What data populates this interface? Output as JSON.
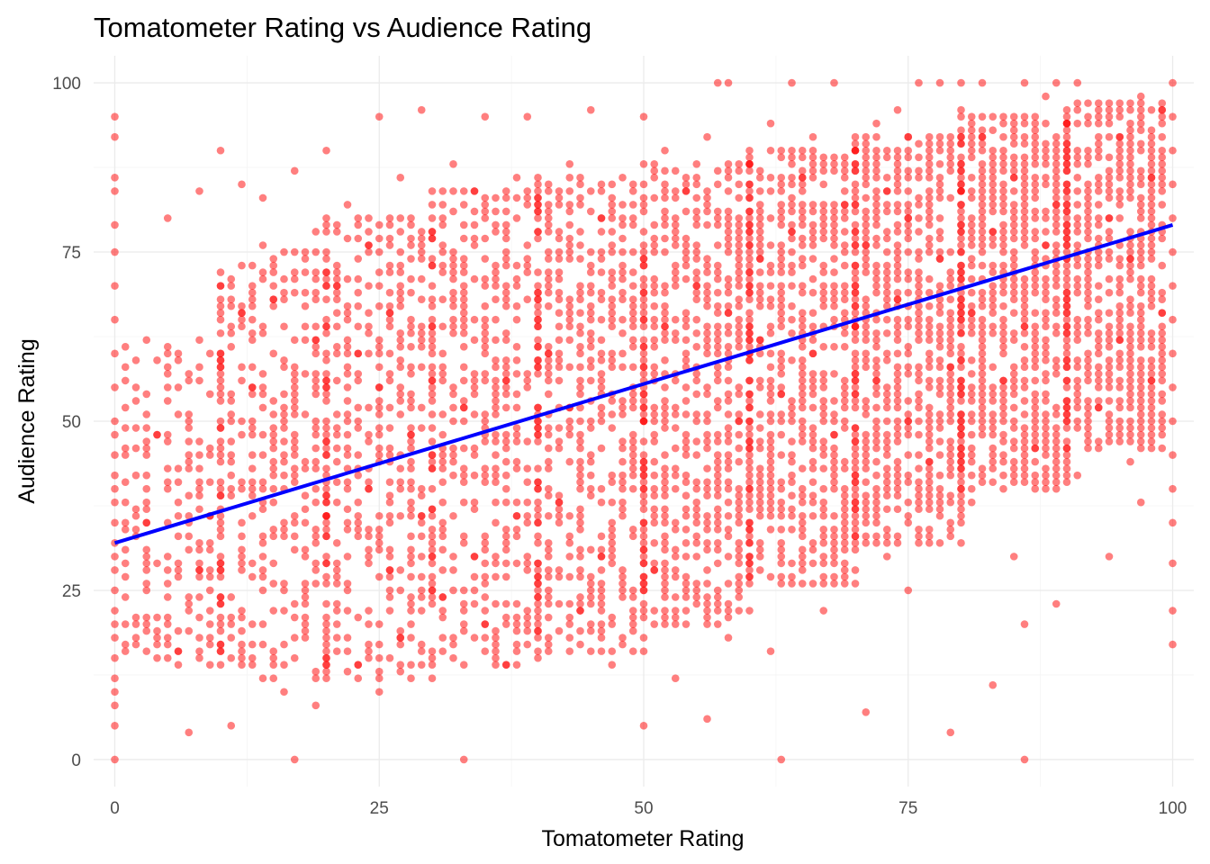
{
  "chart_data": {
    "type": "scatter",
    "title": "Tomatometer Rating vs Audience Rating",
    "xlabel": "Tomatometer Rating",
    "ylabel": "Audience Rating",
    "xlim": [
      -2,
      102
    ],
    "ylim": [
      -4,
      104
    ],
    "x_ticks": [
      0,
      25,
      50,
      75,
      100
    ],
    "y_ticks": [
      0,
      25,
      50,
      75,
      100
    ],
    "x_tick_labels": [
      "0",
      "25",
      "50",
      "75",
      "100"
    ],
    "y_tick_labels": [
      "0",
      "25",
      "50",
      "75",
      "100"
    ],
    "grid": true,
    "point_color": "#ff0000",
    "point_opacity": 0.5,
    "trend_color": "#0000ff",
    "trend_line": {
      "x": [
        0,
        100
      ],
      "y": [
        32,
        79
      ]
    },
    "points": [
      [
        0,
        0
      ],
      [
        0,
        5
      ],
      [
        0,
        8
      ],
      [
        0,
        10
      ],
      [
        0,
        12
      ],
      [
        0,
        15
      ],
      [
        0,
        18
      ],
      [
        0,
        20
      ],
      [
        0,
        22
      ],
      [
        0,
        25
      ],
      [
        0,
        28
      ],
      [
        0,
        30
      ],
      [
        0,
        32
      ],
      [
        0,
        35
      ],
      [
        0,
        38
      ],
      [
        0,
        40
      ],
      [
        0,
        42
      ],
      [
        0,
        45
      ],
      [
        0,
        48
      ],
      [
        0,
        50
      ],
      [
        0,
        55
      ],
      [
        0,
        60
      ],
      [
        0,
        65
      ],
      [
        0,
        70
      ],
      [
        0,
        75
      ],
      [
        0,
        79
      ],
      [
        0,
        84
      ],
      [
        0,
        86
      ],
      [
        0,
        92
      ],
      [
        0,
        95
      ],
      [
        2,
        42
      ],
      [
        3,
        35
      ],
      [
        3,
        25
      ],
      [
        4,
        48
      ],
      [
        5,
        30
      ],
      [
        5,
        20
      ],
      [
        5,
        60
      ],
      [
        5,
        80
      ],
      [
        6,
        38
      ],
      [
        6,
        16
      ],
      [
        6,
        55
      ],
      [
        7,
        4
      ],
      [
        7,
        45
      ],
      [
        8,
        28
      ],
      [
        8,
        62
      ],
      [
        8,
        84
      ],
      [
        9,
        18
      ],
      [
        9,
        36
      ],
      [
        10,
        50
      ],
      [
        10,
        70
      ],
      [
        10,
        90
      ],
      [
        10,
        24
      ],
      [
        11,
        5
      ],
      [
        11,
        42
      ],
      [
        12,
        30
      ],
      [
        12,
        66
      ],
      [
        12,
        85
      ],
      [
        13,
        14
      ],
      [
        13,
        55
      ],
      [
        14,
        38
      ],
      [
        14,
        76
      ],
      [
        14,
        83
      ],
      [
        15,
        22
      ],
      [
        15,
        48
      ],
      [
        15,
        68
      ],
      [
        16,
        10
      ],
      [
        16,
        34
      ],
      [
        16,
        58
      ],
      [
        17,
        0
      ],
      [
        17,
        72
      ],
      [
        17,
        87
      ],
      [
        18,
        26
      ],
      [
        18,
        44
      ],
      [
        19,
        8
      ],
      [
        19,
        62
      ],
      [
        19,
        78
      ],
      [
        20,
        90
      ],
      [
        20,
        36
      ],
      [
        20,
        54
      ],
      [
        21,
        18
      ],
      [
        21,
        70
      ],
      [
        22,
        46
      ],
      [
        22,
        82
      ],
      [
        22,
        30
      ],
      [
        23,
        14
      ],
      [
        23,
        60
      ],
      [
        24,
        40
      ],
      [
        24,
        76
      ],
      [
        25,
        10
      ],
      [
        25,
        55
      ],
      [
        25,
        95
      ],
      [
        26,
        28
      ],
      [
        26,
        66
      ],
      [
        27,
        86
      ],
      [
        27,
        18
      ],
      [
        28,
        48
      ],
      [
        28,
        74
      ],
      [
        29,
        96
      ],
      [
        29,
        36
      ],
      [
        30,
        12
      ],
      [
        30,
        58
      ],
      [
        30,
        80
      ],
      [
        31,
        24
      ],
      [
        31,
        68
      ],
      [
        32,
        44
      ],
      [
        32,
        88
      ],
      [
        33,
        0
      ],
      [
        33,
        52
      ],
      [
        33,
        72
      ],
      [
        34,
        30
      ],
      [
        34,
        84
      ],
      [
        35,
        62
      ],
      [
        35,
        95
      ],
      [
        35,
        20
      ],
      [
        36,
        42
      ],
      [
        36,
        78
      ],
      [
        37,
        14
      ],
      [
        37,
        56
      ],
      [
        38,
        36
      ],
      [
        38,
        86
      ],
      [
        39,
        68
      ],
      [
        39,
        95
      ],
      [
        40,
        26
      ],
      [
        40,
        48
      ],
      [
        40,
        82
      ],
      [
        41,
        60
      ],
      [
        41,
        16
      ],
      [
        42,
        74
      ],
      [
        42,
        38
      ],
      [
        43,
        88
      ],
      [
        43,
        52
      ],
      [
        44,
        22
      ],
      [
        44,
        66
      ],
      [
        45,
        96
      ],
      [
        45,
        44
      ],
      [
        46,
        80
      ],
      [
        46,
        30
      ],
      [
        47,
        58
      ],
      [
        47,
        14
      ],
      [
        48,
        72
      ],
      [
        48,
        86
      ],
      [
        49,
        40
      ],
      [
        49,
        62
      ],
      [
        50,
        5
      ],
      [
        50,
        50
      ],
      [
        50,
        95
      ],
      [
        51,
        28
      ],
      [
        51,
        76
      ],
      [
        52,
        64
      ],
      [
        52,
        90
      ],
      [
        53,
        12
      ],
      [
        53,
        46
      ],
      [
        54,
        84
      ],
      [
        54,
        34
      ],
      [
        55,
        56
      ],
      [
        55,
        70
      ],
      [
        56,
        6
      ],
      [
        56,
        92
      ],
      [
        57,
        42
      ],
      [
        57,
        100
      ],
      [
        58,
        18
      ],
      [
        58,
        66
      ],
      [
        58,
        100
      ],
      [
        59,
        80
      ],
      [
        59,
        50
      ],
      [
        60,
        88
      ],
      [
        60,
        28
      ],
      [
        61,
        62
      ],
      [
        61,
        74
      ],
      [
        62,
        16
      ],
      [
        62,
        94
      ],
      [
        63,
        0
      ],
      [
        63,
        54
      ],
      [
        64,
        100
      ],
      [
        64,
        78
      ],
      [
        65,
        36
      ],
      [
        65,
        86
      ],
      [
        66,
        60
      ],
      [
        66,
        92
      ],
      [
        67,
        22
      ],
      [
        67,
        70
      ],
      [
        68,
        100
      ],
      [
        68,
        48
      ],
      [
        69,
        82
      ],
      [
        69,
        40
      ],
      [
        70,
        90
      ],
      [
        70,
        64
      ],
      [
        71,
        7
      ],
      [
        71,
        76
      ],
      [
        72,
        94
      ],
      [
        72,
        56
      ],
      [
        73,
        30
      ],
      [
        73,
        84
      ],
      [
        74,
        68
      ],
      [
        74,
        96
      ],
      [
        75,
        25
      ],
      [
        75,
        50
      ],
      [
        75,
        80
      ],
      [
        75,
        92
      ],
      [
        76,
        100
      ],
      [
        76,
        62
      ],
      [
        77,
        44
      ],
      [
        77,
        88
      ],
      [
        78,
        100
      ],
      [
        78,
        74
      ],
      [
        79,
        4
      ],
      [
        79,
        58
      ],
      [
        80,
        96
      ],
      [
        80,
        84
      ],
      [
        80,
        100
      ],
      [
        81,
        66
      ],
      [
        81,
        38
      ],
      [
        82,
        92
      ],
      [
        82,
        100
      ],
      [
        83,
        11
      ],
      [
        83,
        78
      ],
      [
        84,
        56
      ],
      [
        84,
        94
      ],
      [
        85,
        30
      ],
      [
        85,
        86
      ],
      [
        86,
        0
      ],
      [
        86,
        20
      ],
      [
        86,
        64
      ],
      [
        86,
        100
      ],
      [
        87,
        90
      ],
      [
        87,
        46
      ],
      [
        88,
        76
      ],
      [
        88,
        98
      ],
      [
        89,
        23
      ],
      [
        89,
        82
      ],
      [
        89,
        100
      ],
      [
        90,
        60
      ],
      [
        90,
        94
      ],
      [
        91,
        42
      ],
      [
        91,
        100
      ],
      [
        92,
        70
      ],
      [
        92,
        88
      ],
      [
        93,
        52
      ],
      [
        93,
        96
      ],
      [
        94,
        30
      ],
      [
        94,
        80
      ],
      [
        95,
        62
      ],
      [
        95,
        92
      ],
      [
        96,
        44
      ],
      [
        96,
        74
      ],
      [
        97,
        38
      ],
      [
        97,
        98
      ],
      [
        98,
        56
      ],
      [
        98,
        86
      ],
      [
        99,
        66
      ],
      [
        99,
        96
      ],
      [
        100,
        17
      ],
      [
        100,
        22
      ],
      [
        100,
        29
      ],
      [
        100,
        35
      ],
      [
        100,
        40
      ],
      [
        100,
        45
      ],
      [
        100,
        50
      ],
      [
        100,
        55
      ],
      [
        100,
        60
      ],
      [
        100,
        65
      ],
      [
        100,
        70
      ],
      [
        100,
        75
      ],
      [
        100,
        80
      ],
      [
        100,
        85
      ],
      [
        100,
        90
      ],
      [
        100,
        95
      ],
      [
        100,
        100
      ]
    ],
    "density_bands": [
      {
        "x_from": 1,
        "x_to": 10,
        "y_from": 14,
        "y_to": 62
      },
      {
        "x_from": 10,
        "x_to": 20,
        "y_from": 12,
        "y_to": 75
      },
      {
        "x_from": 20,
        "x_to": 30,
        "y_from": 12,
        "y_to": 80
      },
      {
        "x_from": 30,
        "x_to": 40,
        "y_from": 14,
        "y_to": 84
      },
      {
        "x_from": 40,
        "x_to": 50,
        "y_from": 16,
        "y_to": 86
      },
      {
        "x_from": 50,
        "x_to": 60,
        "y_from": 20,
        "y_to": 88
      },
      {
        "x_from": 60,
        "x_to": 70,
        "y_from": 26,
        "y_to": 90
      },
      {
        "x_from": 70,
        "x_to": 80,
        "y_from": 32,
        "y_to": 92
      },
      {
        "x_from": 80,
        "x_to": 90,
        "y_from": 40,
        "y_to": 95
      },
      {
        "x_from": 90,
        "x_to": 99,
        "y_from": 46,
        "y_to": 97
      }
    ]
  }
}
